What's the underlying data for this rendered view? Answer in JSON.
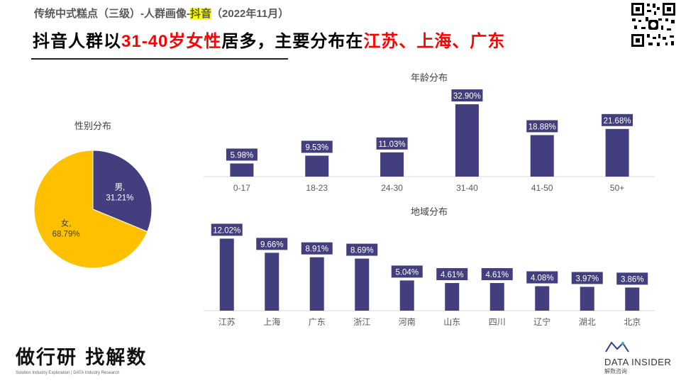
{
  "header": {
    "subtitle_pre": "传统中式糕点（三级）-人群画像-",
    "subtitle_hl": "抖音",
    "subtitle_post": "（2022年11月）",
    "headline_a": "抖音人群以",
    "headline_b": "31-40岁女性",
    "headline_c": "居多，主要分布在",
    "headline_d": "江苏、上海、广东"
  },
  "footer": {
    "brand_cn": "做行研 找解数",
    "brand_small": "Solution Industry Exploration | DATA Industry Research",
    "logo": "DATA INSIDER",
    "logo_sub": "解数咨询"
  },
  "colors": {
    "bar": "#433e7e",
    "pie_male": "#433e7e",
    "pie_female": "#ffc000",
    "red": "#ff0000"
  },
  "chart_data": [
    {
      "type": "pie",
      "title": "性别分布",
      "slices": [
        {
          "label": "男",
          "value": 31.21,
          "display": "31.21%"
        },
        {
          "label": "女",
          "value": 68.79,
          "display": "68.79%"
        }
      ]
    },
    {
      "type": "bar",
      "title": "年龄分布",
      "categories": [
        "0-17",
        "18-23",
        "24-30",
        "31-40",
        "41-50",
        "50+"
      ],
      "values": [
        5.98,
        9.53,
        11.03,
        32.9,
        18.88,
        21.68
      ],
      "labels": [
        "5.98%",
        "9.53%",
        "11.03%",
        "32.90%",
        "18.88%",
        "21.68%"
      ]
    },
    {
      "type": "bar",
      "title": "地域分布",
      "categories": [
        "江苏",
        "上海",
        "广东",
        "浙江",
        "河南",
        "山东",
        "四川",
        "辽宁",
        "湖北",
        "北京"
      ],
      "values": [
        12.02,
        9.66,
        8.91,
        8.69,
        5.04,
        4.61,
        4.61,
        4.08,
        3.97,
        3.86
      ],
      "labels": [
        "12.02%",
        "9.66%",
        "8.91%",
        "8.69%",
        "5.04%",
        "4.61%",
        "4.61%",
        "4.08%",
        "3.97%",
        "3.86%"
      ]
    }
  ]
}
